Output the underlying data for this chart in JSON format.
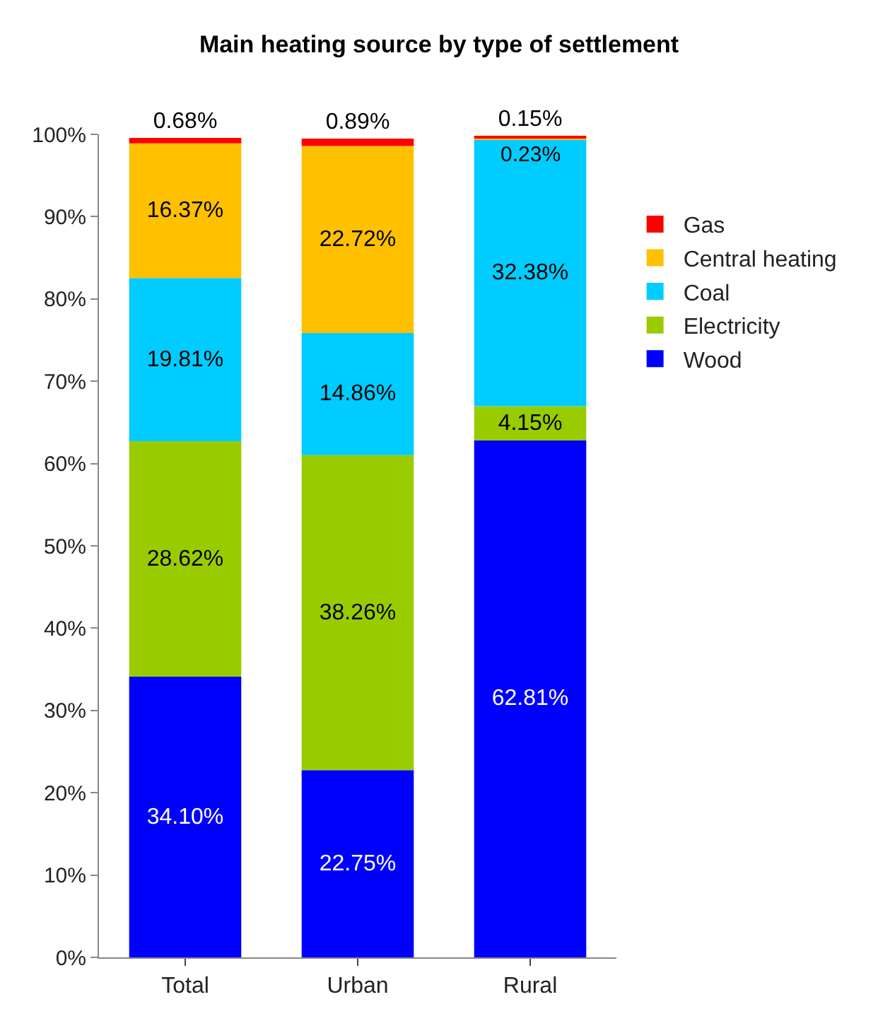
{
  "chart_data": {
    "type": "bar",
    "title": "Main heating source by type of settlement",
    "stacked": true,
    "categories": [
      "Total",
      "Urban",
      "Rural"
    ],
    "series": [
      {
        "name": "Wood",
        "color": "#0000ff",
        "values": [
          34.1,
          22.75,
          62.81
        ],
        "value_labels": [
          "34.10%",
          "22.75%",
          "62.81%"
        ]
      },
      {
        "name": "Electricity",
        "color": "#99cc00",
        "values": [
          28.62,
          38.26,
          4.15
        ],
        "value_labels": [
          "28.62%",
          "38.26%",
          "4.15%"
        ]
      },
      {
        "name": "Coal",
        "color": "#00ccff",
        "values": [
          19.81,
          14.86,
          32.38
        ],
        "value_labels": [
          "19.81%",
          "14.86%",
          "32.38%"
        ]
      },
      {
        "name": "Central heating",
        "color": "#ffc000",
        "values": [
          16.37,
          22.72,
          0.23
        ],
        "value_labels": [
          "16.37%",
          "22.72%",
          "0.23%"
        ]
      },
      {
        "name": "Gas",
        "color": "#ff0000",
        "values": [
          0.68,
          0.89,
          0.15
        ],
        "value_labels": [
          "0.68%",
          "0.89%",
          "0.15%"
        ]
      }
    ],
    "ylim": [
      0,
      100
    ],
    "yticks": [
      {
        "value": 0,
        "label": "0%"
      },
      {
        "value": 10,
        "label": "10%"
      },
      {
        "value": 20,
        "label": "20%"
      },
      {
        "value": 30,
        "label": "30%"
      },
      {
        "value": 40,
        "label": "40%"
      },
      {
        "value": 50,
        "label": "50%"
      },
      {
        "value": 60,
        "label": "60%"
      },
      {
        "value": 70,
        "label": "70%"
      },
      {
        "value": 80,
        "label": "80%"
      },
      {
        "value": 90,
        "label": "90%"
      },
      {
        "value": 100,
        "label": "100%"
      }
    ],
    "legend": "right"
  }
}
